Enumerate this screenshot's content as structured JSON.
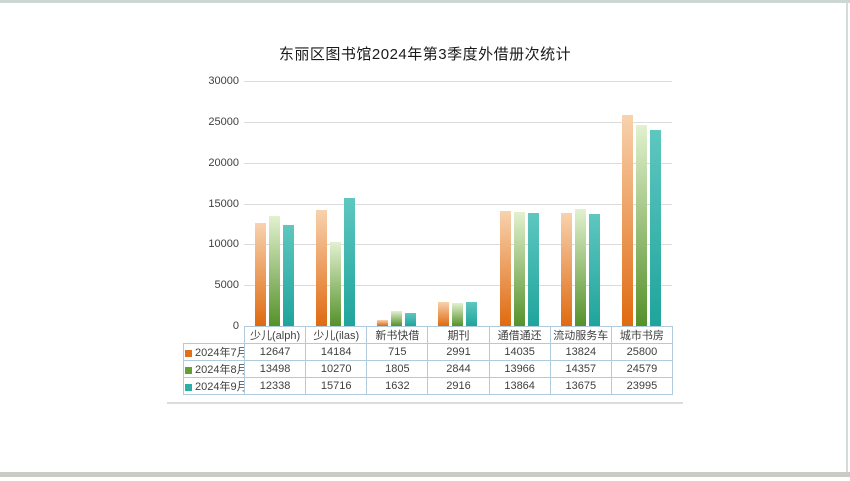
{
  "chart_data": {
    "type": "bar",
    "title": "东丽区图书馆2024年第3季度外借册次统计",
    "categories": [
      "少儿(alph)",
      "少儿(ilas)",
      "新书快借",
      "期刊",
      "通借通还",
      "流动服务车",
      "城市书房"
    ],
    "series": [
      {
        "name": "2024年7月",
        "color": "#e2701a",
        "gradient_top": "#f8d2ae",
        "gradient_bottom": "#df6a10",
        "values": [
          12647,
          14184,
          715,
          2991,
          14035,
          13824,
          25800
        ]
      },
      {
        "name": "2024年8月",
        "color": "#62a032",
        "gradient_top": "#e2f1d0",
        "gradient_bottom": "#55912a",
        "values": [
          13498,
          10270,
          1805,
          2844,
          13966,
          14357,
          24579
        ]
      },
      {
        "name": "2024年9月",
        "color": "#2bafa8",
        "gradient_top": "#5ec7c0",
        "gradient_bottom": "#1fa49c",
        "values": [
          12338,
          15716,
          1632,
          2916,
          13864,
          13675,
          23995
        ]
      }
    ],
    "ylim": [
      0,
      30000
    ],
    "y_ticks": [
      0,
      5000,
      10000,
      15000,
      20000,
      25000,
      30000
    ],
    "grid": true,
    "legend_position": "table-left",
    "data_table_shown": true,
    "gridline_color": "#dcdcdc",
    "table_border_color": "#b0cade",
    "text_color": "#3f3f3f"
  },
  "frame": {
    "top_border_color": "#ccd6d2",
    "bottom_border_color": "#c9cbc5",
    "right_border_color": "#d6dcd9"
  }
}
